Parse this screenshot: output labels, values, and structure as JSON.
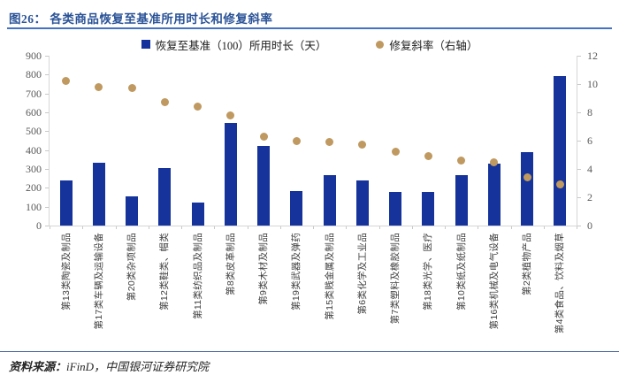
{
  "figure": {
    "title": "图26： 各类商品恢复至基准所用时长和修复斜率",
    "source_label": "资料来源：",
    "source_text": "iFinD，中国银河证券研究院"
  },
  "legend": [
    {
      "label": "恢复至基准（100）所用时长（天）",
      "marker": "square",
      "color": "#15339B"
    },
    {
      "label": "修复斜率（右轴）",
      "marker": "circle",
      "color": "#BF9960"
    }
  ],
  "chart_data": {
    "type": "bar",
    "subtype": "combo-bar-scatter",
    "title": "各类商品恢复至基准所用时长和修复斜率",
    "categories": [
      "第13类陶瓷及制品",
      "第17类车辆及运输设备",
      "第20类杂项制品",
      "第12类鞋类、帽类",
      "第11类纺织品及制品",
      "第8类皮革制品",
      "第9类木材及制品",
      "第19类武器及弹药",
      "第15类贱金属及制品",
      "第6类化学及工业品",
      "第7类塑料及橡胶制品",
      "第18类光学、医疗",
      "第10类纸及纸制品",
      "第16类机械及电气设备",
      "第2类植物产品",
      "第4类食品、饮料及烟草"
    ],
    "series": [
      {
        "name": "恢复至基准（100）所用时长（天）",
        "type": "bar",
        "axis": "left",
        "color": "#15339B",
        "values": [
          240,
          335,
          155,
          305,
          122,
          545,
          420,
          183,
          267,
          237,
          178,
          178,
          266,
          330,
          388,
          790
        ]
      },
      {
        "name": "修复斜率（右轴）",
        "type": "scatter",
        "axis": "right",
        "color": "#BF9960",
        "values": [
          10.2,
          9.8,
          9.7,
          8.7,
          8.4,
          7.8,
          6.3,
          6.0,
          5.9,
          5.7,
          5.2,
          4.9,
          4.6,
          4.5,
          3.4,
          2.9
        ]
      }
    ],
    "left_axis": {
      "min": 0,
      "max": 900,
      "step": 100,
      "ticks": [
        "900",
        "800",
        "700",
        "600",
        "500",
        "400",
        "300",
        "200",
        "100",
        "0"
      ]
    },
    "right_axis": {
      "min": 0,
      "max": 12,
      "step": 2,
      "ticks": [
        "12",
        "10",
        "8",
        "6",
        "4",
        "2",
        "0"
      ]
    },
    "grid": false,
    "legend_position": "top"
  }
}
